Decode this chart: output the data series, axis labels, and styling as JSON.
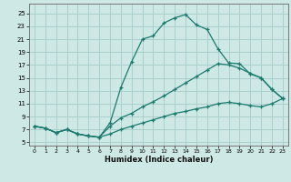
{
  "xlabel": "Humidex (Indice chaleur)",
  "bg_color": "#cde8e5",
  "grid_color": "#aacfcc",
  "line_color": "#1a7a6e",
  "xlim": [
    -0.5,
    23.5
  ],
  "ylim": [
    4.5,
    26.5
  ],
  "xticks": [
    0,
    1,
    2,
    3,
    4,
    5,
    6,
    7,
    8,
    9,
    10,
    11,
    12,
    13,
    14,
    15,
    16,
    17,
    18,
    19,
    20,
    21,
    22,
    23
  ],
  "yticks": [
    5,
    7,
    9,
    11,
    13,
    15,
    17,
    19,
    21,
    23,
    25
  ],
  "line1_x": [
    0,
    1,
    2,
    3,
    4,
    5,
    6,
    7,
    8,
    9,
    10,
    11,
    12,
    13,
    14,
    15,
    16,
    17,
    18,
    19,
    20,
    21,
    22,
    23
  ],
  "line1_y": [
    7.5,
    7.2,
    6.5,
    7.0,
    6.3,
    6.0,
    5.8,
    8.0,
    13.5,
    17.5,
    21.0,
    21.5,
    23.5,
    24.3,
    24.8,
    23.2,
    22.5,
    19.5,
    17.3,
    17.2,
    15.6,
    15.0,
    13.2,
    11.8
  ],
  "line2_x": [
    0,
    1,
    2,
    3,
    4,
    5,
    6,
    7,
    8,
    9,
    10,
    11,
    12,
    13,
    14,
    15,
    16,
    17,
    18,
    19,
    20,
    21,
    22,
    23
  ],
  "line2_y": [
    7.5,
    7.2,
    6.5,
    7.0,
    6.3,
    6.0,
    5.8,
    7.5,
    8.8,
    9.5,
    10.5,
    11.3,
    12.2,
    13.2,
    14.2,
    15.2,
    16.2,
    17.2,
    17.0,
    16.5,
    15.7,
    15.0,
    13.2,
    11.8
  ],
  "line3_x": [
    0,
    1,
    2,
    3,
    4,
    5,
    6,
    7,
    8,
    9,
    10,
    11,
    12,
    13,
    14,
    15,
    16,
    17,
    18,
    19,
    20,
    21,
    22,
    23
  ],
  "line3_y": [
    7.5,
    7.2,
    6.5,
    7.0,
    6.3,
    6.0,
    5.8,
    6.3,
    7.0,
    7.5,
    8.0,
    8.5,
    9.0,
    9.5,
    9.8,
    10.2,
    10.5,
    11.0,
    11.2,
    11.0,
    10.7,
    10.5,
    11.0,
    11.8
  ]
}
